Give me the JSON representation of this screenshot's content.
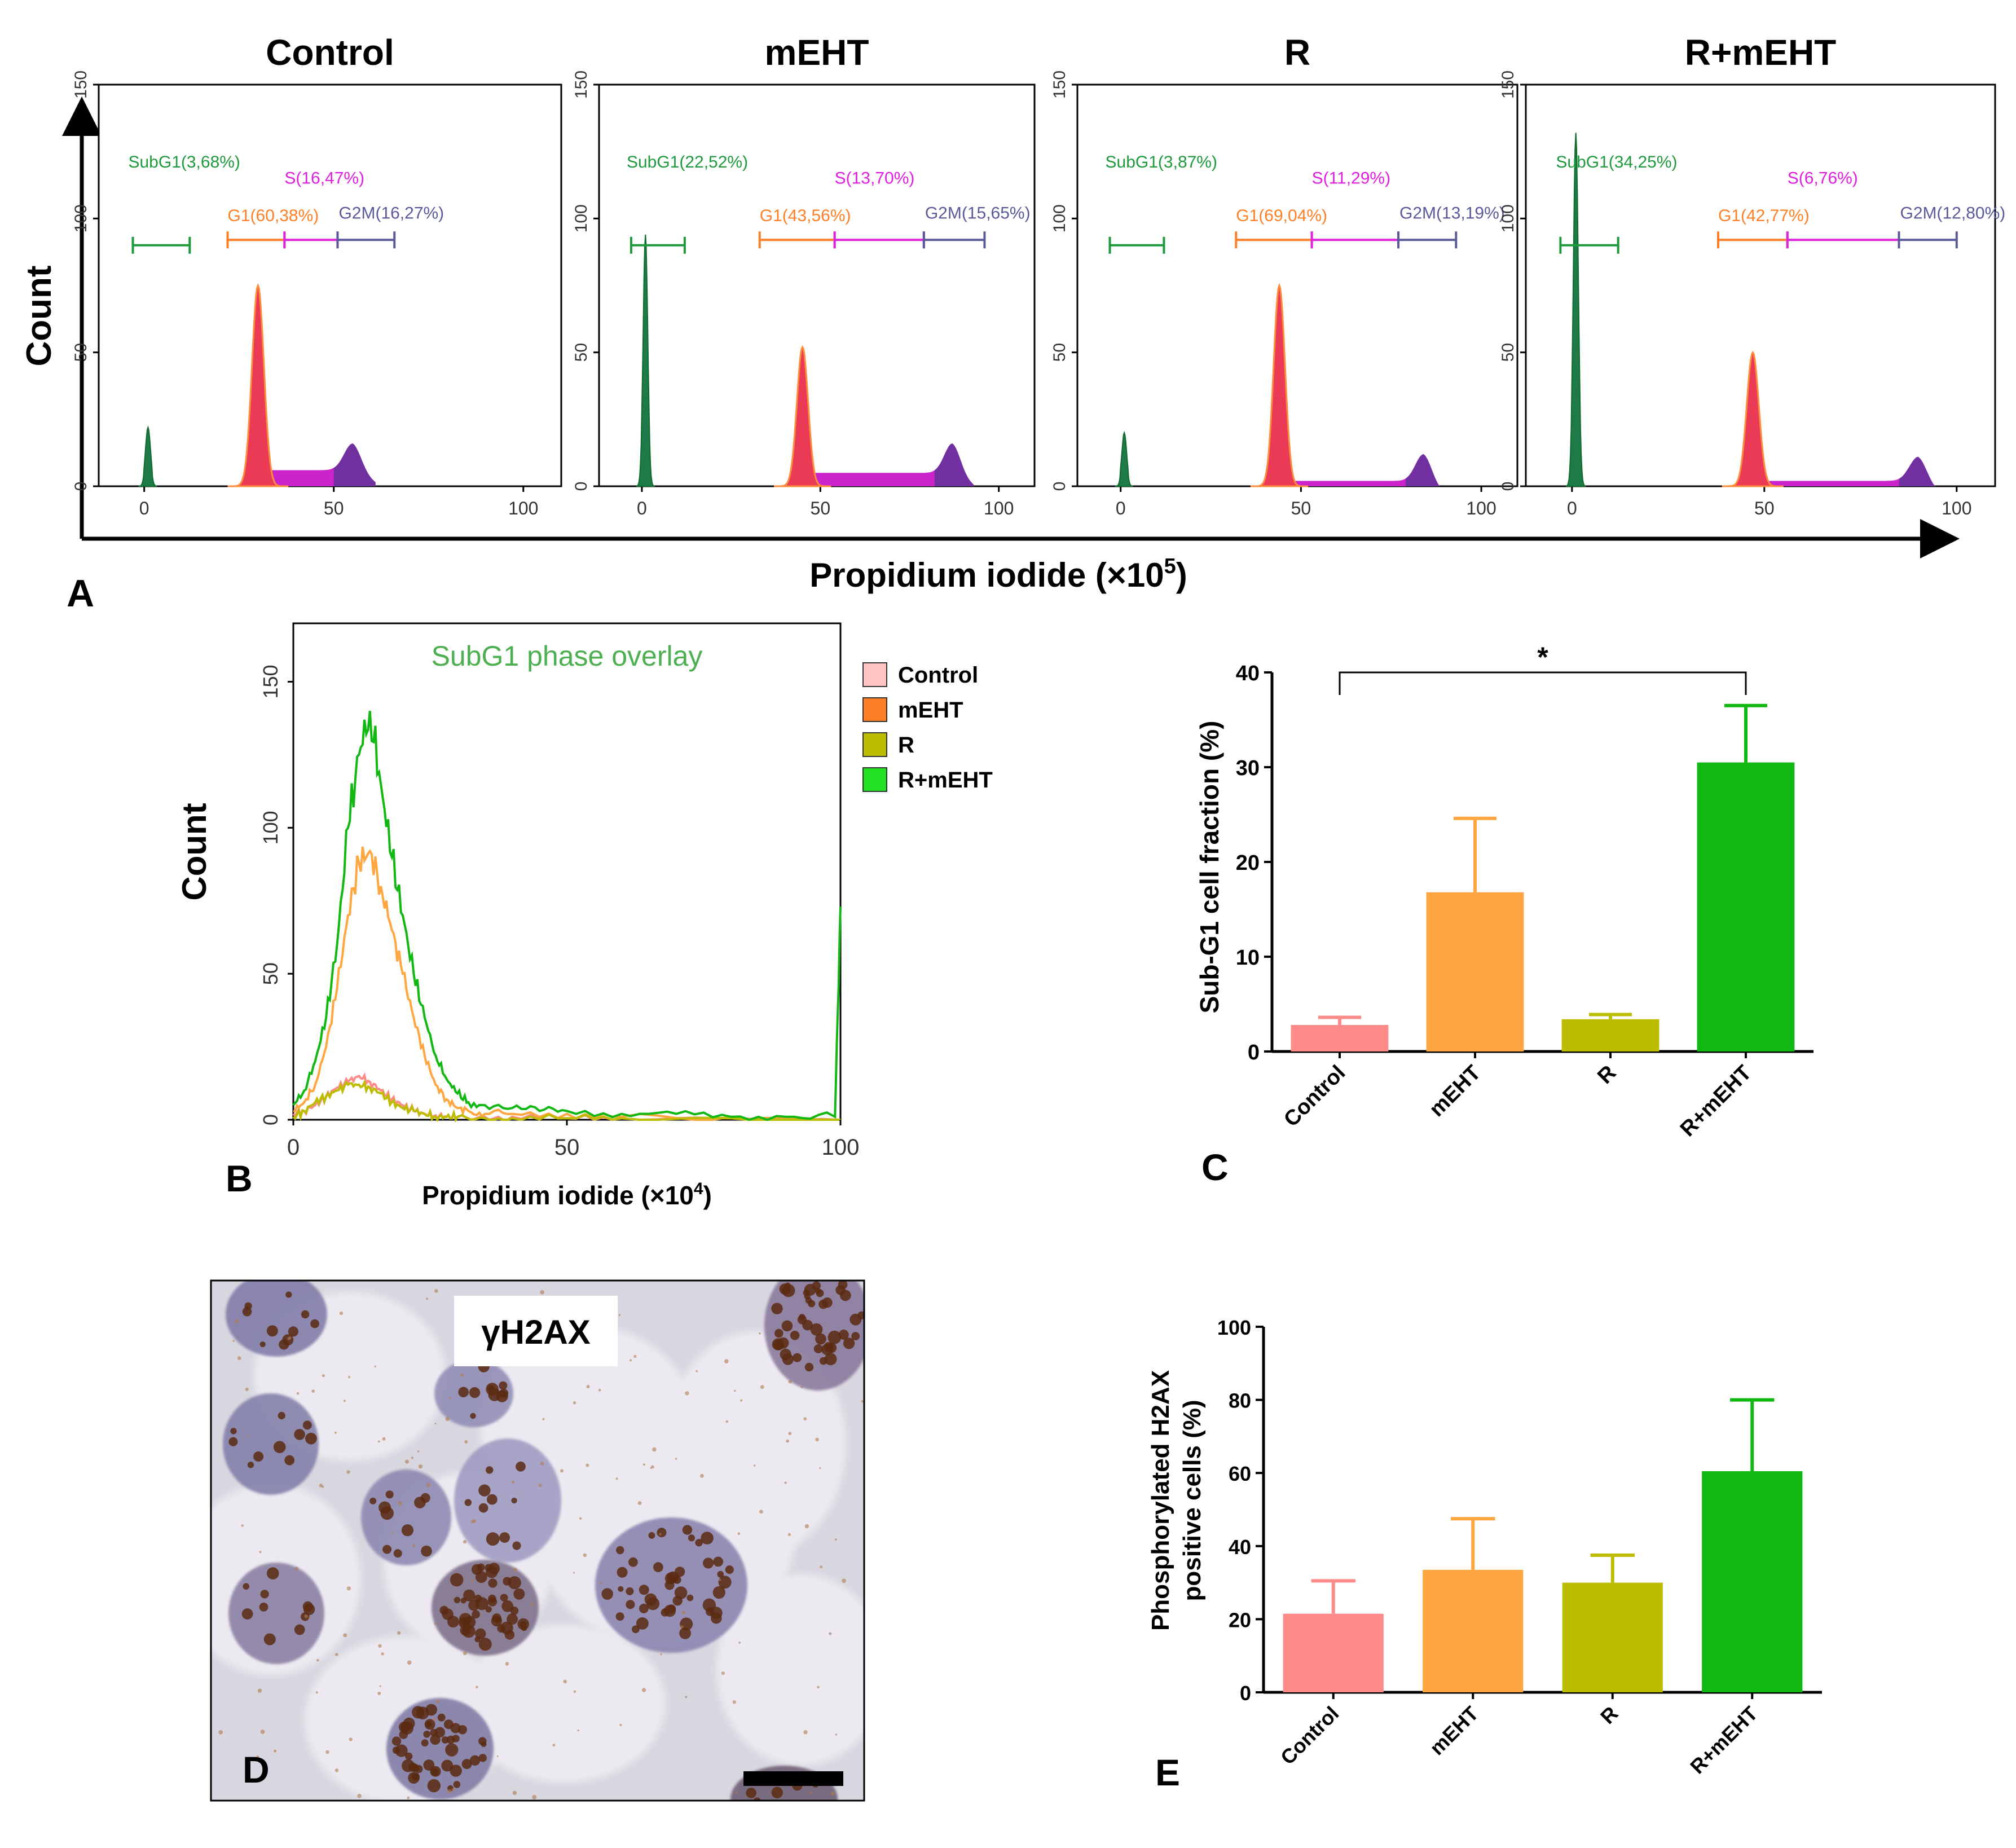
{
  "figure": {
    "panel_letters": {
      "a": "A",
      "b": "B",
      "c": "C",
      "d": "D",
      "e": "E"
    },
    "colors": {
      "subg1": "#1e9a3c",
      "g1": "#ff7f27",
      "s": "#e020e0",
      "g2m": "#5a5a9a",
      "peak_red": "#ea3a56",
      "peak_magenta": "#cc22cc",
      "peak_purple": "#7030a0",
      "control": "#ff8a8a",
      "mehT": "#ffa640",
      "r": "#bcbc00",
      "rmehT": "#12b812"
    }
  },
  "chart_data": [
    {
      "id": "A",
      "type": "area",
      "subtype": "flow-cytometry-histograms",
      "ylabel": "Count",
      "xlabel": "Propidium iodide (×10",
      "xlabel_sup": "5",
      "xlabel_end": ")",
      "xlim": [
        -12,
        110
      ],
      "ylim": [
        0,
        150
      ],
      "x_ticks": [
        "0",
        "50",
        "100"
      ],
      "y_ticks": [
        "0",
        "50",
        "100",
        "150"
      ],
      "panels": [
        {
          "title": "Control",
          "gates": {
            "subg1": "SubG1(3,68%)",
            "s": "S(16,47%)",
            "g1": "G1(60,38%)",
            "g2m": "G2M(16,27%)"
          },
          "gate_ranges": {
            "subg1": [
              -3,
              12
            ],
            "g1": [
              22,
              37
            ],
            "s": [
              37,
              51
            ],
            "g2m": [
              51,
              66
            ]
          },
          "peaks": {
            "subg1": [
              1,
              20
            ],
            "g1": [
              30,
              75
            ],
            "s_level": 6,
            "g2m": [
              55,
              16
            ]
          }
        },
        {
          "title": "mEHT",
          "gates": {
            "subg1": "SubG1(22,52%)",
            "s": "S(13,70%)",
            "g1": "G1(43,56%)",
            "g2m": "G2M(15,65%)"
          },
          "gate_ranges": {
            "subg1": [
              -3,
              12
            ],
            "g1": [
              33,
              54
            ],
            "s": [
              54,
              79
            ],
            "g2m": [
              79,
              96
            ]
          },
          "peaks": {
            "subg1": [
              1,
              92
            ],
            "g1": [
              45,
              52
            ],
            "s_level": 5,
            "g2m": [
              87,
              16
            ]
          }
        },
        {
          "title": "R",
          "gates": {
            "subg1": "SubG1(3,87%)",
            "s": "S(11,29%)",
            "g1": "G1(69,04%)",
            "g2m": "G2M(13,19%)"
          },
          "gate_ranges": {
            "subg1": [
              -3,
              12
            ],
            "g1": [
              32,
              53
            ],
            "s": [
              53,
              77
            ],
            "g2m": [
              77,
              93
            ]
          },
          "peaks": {
            "subg1": [
              1,
              18
            ],
            "g1": [
              44,
              75
            ],
            "s_level": 2,
            "g2m": [
              84,
              12
            ]
          }
        },
        {
          "title": "R+mEHT",
          "gates": {
            "subg1": "SubG1(34,25%)",
            "s": "S(6,76%)",
            "g1": "G1(42,77%)",
            "g2m": "G2M(12,80%)"
          },
          "gate_ranges": {
            "subg1": [
              -3,
              12
            ],
            "g1": [
              38,
              56
            ],
            "s": [
              56,
              85
            ],
            "g2m": [
              85,
              100
            ]
          },
          "peaks": {
            "subg1": [
              1,
              130
            ],
            "g1": [
              47,
              50
            ],
            "s_level": 2,
            "g2m": [
              90,
              11
            ]
          }
        }
      ]
    },
    {
      "id": "B",
      "type": "line",
      "title": "SubG1 phase overlay",
      "ylabel": "Count",
      "xlabel": "Propidium iodide (×10",
      "xlabel_sup": "4",
      "xlabel_end": ")",
      "xlim": [
        0,
        100
      ],
      "ylim": [
        0,
        170
      ],
      "x_ticks": [
        "0",
        "50",
        "100"
      ],
      "y_ticks": [
        "0",
        "50",
        "100",
        "150"
      ],
      "legend": [
        "Control",
        "mEHT",
        "R",
        "R+mEHT"
      ],
      "legend_position": "right",
      "series": [
        {
          "name": "Control",
          "x": [
            0,
            2,
            4,
            6,
            8,
            10,
            12,
            14,
            16,
            18,
            20,
            22,
            24,
            26,
            28,
            30,
            35,
            40,
            50,
            60,
            80,
            100
          ],
          "values": [
            2,
            3,
            5,
            8,
            11,
            13,
            15,
            13,
            10,
            7,
            5,
            3,
            2,
            1.5,
            1,
            1,
            1,
            1,
            0.5,
            0.5,
            0.5,
            0
          ]
        },
        {
          "name": "mEHT",
          "x": [
            0,
            2,
            4,
            6,
            8,
            10,
            12,
            14,
            16,
            18,
            20,
            22,
            24,
            26,
            28,
            30,
            32,
            35,
            40,
            50,
            60,
            80,
            100
          ],
          "values": [
            3,
            6,
            12,
            25,
            45,
            70,
            88,
            92,
            80,
            65,
            50,
            35,
            22,
            12,
            7,
            4,
            3,
            2,
            2,
            2,
            1,
            1,
            0
          ]
        },
        {
          "name": "R",
          "x": [
            0,
            2,
            4,
            6,
            8,
            10,
            12,
            14,
            16,
            18,
            20,
            22,
            24,
            26,
            28,
            30,
            35,
            40,
            50,
            60,
            80,
            100
          ],
          "values": [
            1,
            3,
            6,
            8,
            10,
            12,
            12,
            11,
            9,
            6,
            4,
            3,
            2,
            1,
            1,
            1,
            0.5,
            0.5,
            0.5,
            0.5,
            0.5,
            0
          ]
        },
        {
          "name": "R+mEHT",
          "x": [
            0,
            2,
            4,
            6,
            8,
            10,
            12,
            14,
            16,
            18,
            20,
            22,
            24,
            26,
            28,
            30,
            32,
            35,
            40,
            45,
            50,
            60,
            70,
            80,
            90,
            99,
            100
          ],
          "values": [
            5,
            10,
            20,
            35,
            60,
            100,
            125,
            140,
            115,
            90,
            70,
            50,
            35,
            22,
            14,
            9,
            6,
            5,
            4,
            3,
            3,
            2,
            2,
            1,
            1,
            1,
            73
          ]
        }
      ]
    },
    {
      "id": "C",
      "type": "bar",
      "categories": [
        "Control",
        "mEHT",
        "R",
        "R+mEHT"
      ],
      "values": [
        2.8,
        16.8,
        3.4,
        30.5
      ],
      "errors": [
        0.8,
        7.8,
        0.5,
        6.0
      ],
      "ylabel": "Sub-G1 cell fraction (%)",
      "ylim": [
        0,
        40
      ],
      "y_ticks": [
        "0",
        "10",
        "20",
        "30",
        "40"
      ],
      "significance": {
        "from": "Control",
        "to": "R+mEHT",
        "label": "*"
      }
    },
    {
      "id": "E",
      "type": "bar",
      "categories": [
        "Control",
        "mEHT",
        "R",
        "R+mEHT"
      ],
      "values": [
        21.5,
        33.5,
        30,
        60.5
      ],
      "errors": [
        9,
        14,
        7.5,
        19.5
      ],
      "ylabel": [
        "Phosphorylated H2AX",
        "positive cells (%)"
      ],
      "ylim": [
        0,
        100
      ],
      "y_ticks": [
        "0",
        "20",
        "40",
        "60",
        "80",
        "100"
      ]
    }
  ],
  "micrograph": {
    "stain_label": "γH2AX"
  }
}
